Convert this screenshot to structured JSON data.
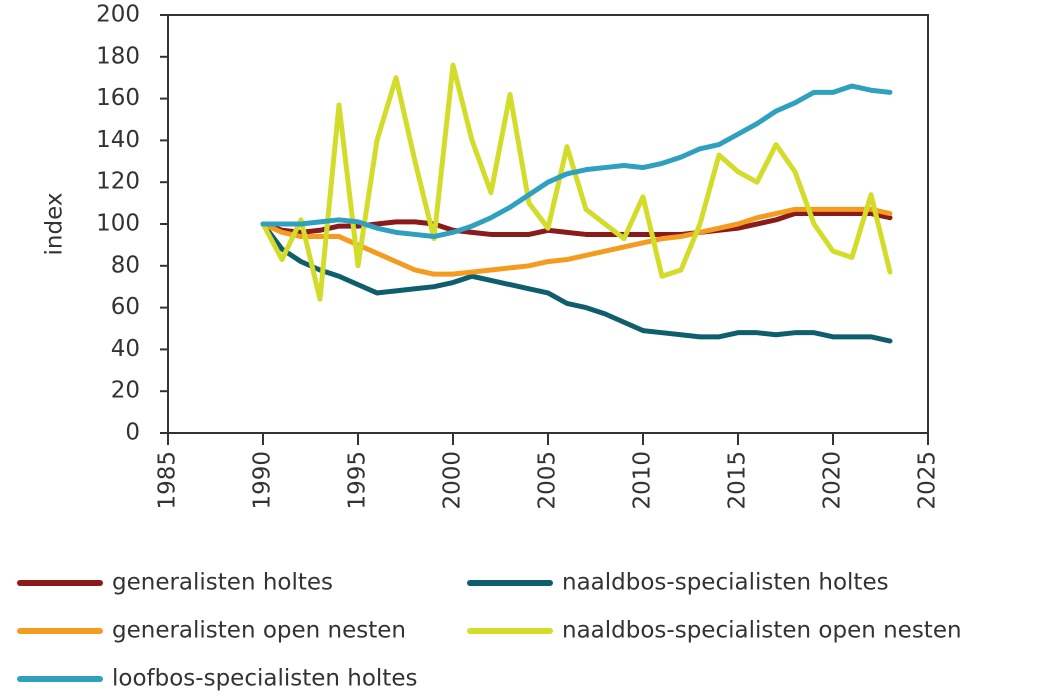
{
  "chart_data": {
    "type": "line",
    "y_label": "index",
    "x": [
      1990,
      1991,
      1992,
      1993,
      1994,
      1995,
      1996,
      1997,
      1998,
      1999,
      2000,
      2001,
      2002,
      2003,
      2004,
      2005,
      2006,
      2007,
      2008,
      2009,
      2010,
      2011,
      2012,
      2013,
      2014,
      2015,
      2016,
      2017,
      2018,
      2019,
      2020,
      2021,
      2022,
      2023
    ],
    "series": [
      {
        "name": "generalisten holtes",
        "color": "#8b1a1a",
        "values": [
          100,
          97,
          96,
          97,
          99,
          99,
          100,
          101,
          101,
          100,
          97,
          96,
          95,
          95,
          95,
          97,
          96,
          95,
          95,
          95,
          95,
          95,
          95,
          96,
          97,
          98,
          100,
          102,
          105,
          105,
          105,
          105,
          105,
          103
        ]
      },
      {
        "name": "naaldbos-specialisten holtes",
        "color": "#0f5e6e",
        "values": [
          100,
          88,
          82,
          78,
          75,
          71,
          67,
          68,
          69,
          70,
          72,
          75,
          73,
          71,
          69,
          67,
          62,
          60,
          57,
          53,
          49,
          48,
          47,
          46,
          46,
          48,
          48,
          47,
          48,
          48,
          46,
          46,
          46,
          44
        ]
      },
      {
        "name": "generalisten open nesten",
        "color": "#f39c1f",
        "values": [
          100,
          96,
          94,
          94,
          94,
          90,
          86,
          82,
          78,
          76,
          76,
          77,
          78,
          79,
          80,
          82,
          83,
          85,
          87,
          89,
          91,
          93,
          94,
          96,
          98,
          100,
          103,
          105,
          107,
          107,
          107,
          107,
          107,
          105
        ]
      },
      {
        "name": "naaldbos-specialisten open nesten",
        "color": "#d4dc2a",
        "values": [
          100,
          83,
          102,
          64,
          157,
          80,
          140,
          170,
          130,
          93,
          176,
          140,
          115,
          162,
          110,
          98,
          137,
          107,
          100,
          93,
          113,
          75,
          78,
          100,
          133,
          125,
          120,
          138,
          125,
          100,
          87,
          84,
          114,
          77
        ]
      },
      {
        "name": "loofbos-specialisten holtes",
        "color": "#2fa0c0",
        "values": [
          100,
          100,
          100,
          101,
          102,
          101,
          98,
          96,
          95,
          94,
          96,
          99,
          103,
          108,
          114,
          120,
          124,
          126,
          127,
          128,
          127,
          129,
          132,
          136,
          138,
          143,
          148,
          154,
          158,
          163,
          163,
          166,
          164,
          163
        ]
      }
    ],
    "xlim": [
      1985,
      2025
    ],
    "xticks": [
      1985,
      1990,
      1995,
      2000,
      2005,
      2010,
      2015,
      2020,
      2025
    ],
    "ylim": [
      0,
      200
    ],
    "yticks": [
      0,
      20,
      40,
      60,
      80,
      100,
      120,
      140,
      160,
      180,
      200
    ]
  }
}
